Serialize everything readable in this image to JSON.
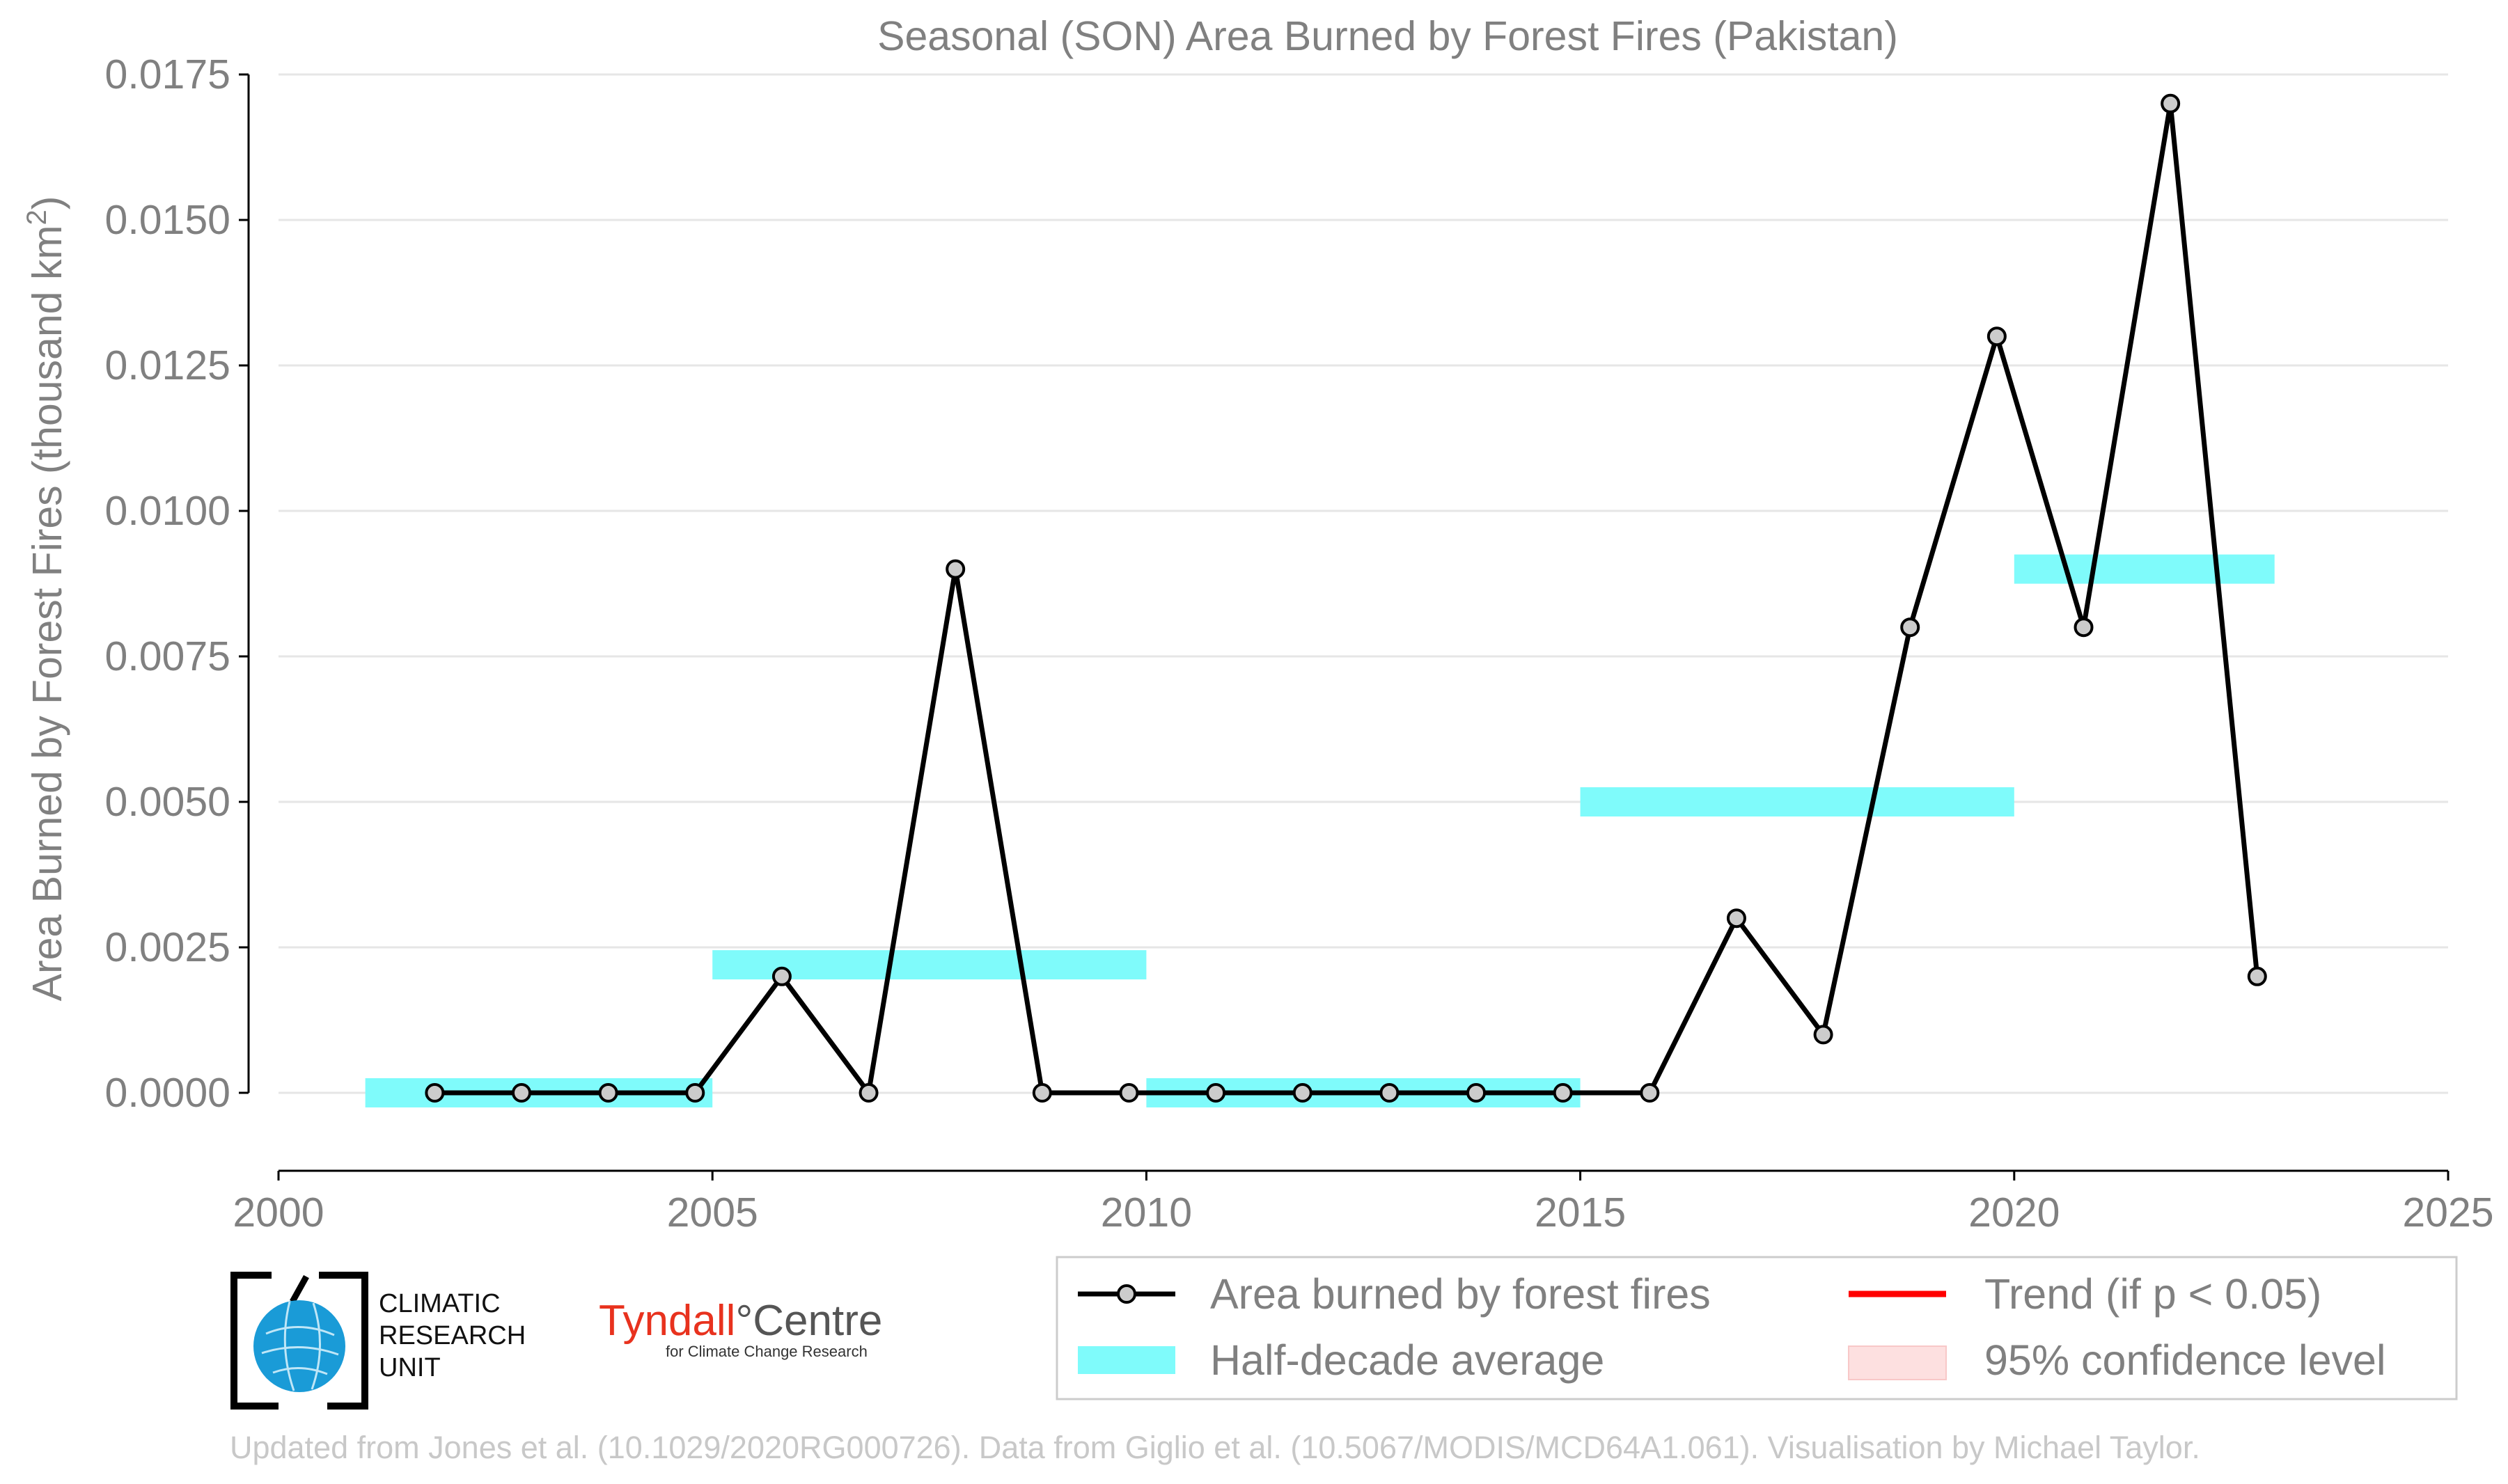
{
  "chart_data": {
    "type": "line",
    "title": "Seasonal (SON) Area Burned by Forest Fires (Pakistan)",
    "ylabel": "Area Burned by Forest Fires (thousand km",
    "ylabel_sup": "2",
    "ylabel_end": ")",
    "xlabel": "",
    "xlim": [
      2000,
      2025
    ],
    "ylim": [
      -0.00135,
      0.0175
    ],
    "xticks": [
      2000,
      2005,
      2010,
      2015,
      2020,
      2025
    ],
    "xtick_labels": [
      "2000",
      "2005",
      "2010",
      "2015",
      "2020",
      "2025"
    ],
    "yticks": [
      0.0,
      0.0025,
      0.005,
      0.0075,
      0.01,
      0.0125,
      0.015,
      0.0175
    ],
    "ytick_labels": [
      "0.0000",
      "0.0025",
      "0.0050",
      "0.0075",
      "0.0100",
      "0.0125",
      "0.0150",
      "0.0175"
    ],
    "grid": "horizontal",
    "series": [
      {
        "name": "Area burned by forest fires",
        "color": "#000000",
        "marker_fill": "#cccccc",
        "x": [
          2001.8,
          2002.8,
          2003.8,
          2004.8,
          2005.8,
          2006.8,
          2007.8,
          2008.8,
          2009.8,
          2010.8,
          2011.8,
          2012.8,
          2013.8,
          2014.8,
          2015.8,
          2016.8,
          2017.8,
          2018.8,
          2019.8,
          2020.8,
          2021.8,
          2022.8
        ],
        "y": [
          0.0,
          0.0,
          0.0,
          0.0,
          0.002,
          0.0,
          0.009,
          0.0,
          0.0,
          0.0,
          0.0,
          0.0,
          0.0,
          0.0,
          0.0,
          0.003,
          0.001,
          0.008,
          0.013,
          0.008,
          0.017,
          0.002
        ]
      }
    ],
    "half_decade_average": {
      "name": "Half-decade average",
      "color": "#7ffbfb",
      "segments": [
        {
          "x0": 2001.0,
          "x1": 2005.0,
          "y": 0.0
        },
        {
          "x0": 2005.0,
          "x1": 2010.0,
          "y": 0.0022
        },
        {
          "x0": 2010.0,
          "x1": 2015.0,
          "y": 0.0
        },
        {
          "x0": 2015.0,
          "x1": 2020.0,
          "y": 0.005
        },
        {
          "x0": 2020.0,
          "x1": 2023.0,
          "y": 0.009
        }
      ]
    },
    "legend": {
      "placement": "bottom-right",
      "entries": [
        {
          "label": "Area burned by forest fires",
          "kind": "line-marker",
          "color": "#000000"
        },
        {
          "label": "Trend (if p < 0.05)",
          "kind": "line",
          "color": "#ff0000"
        },
        {
          "label": "Half-decade average",
          "kind": "patch",
          "color": "#7ffbfb"
        },
        {
          "label": "95% confidence level",
          "kind": "patch",
          "color": "#fde0e0"
        }
      ]
    }
  },
  "logos": {
    "cru_lines": [
      "CLIMATIC",
      "RESEARCH",
      "UNIT"
    ],
    "tyndall_name_red": "Tyndall",
    "tyndall_degree": "°",
    "tyndall_name_grey": "Centre",
    "tyndall_subtitle": "for Climate Change Research"
  },
  "credit": "Updated from Jones et al. (10.1029/2020RG000726). Data from Giglio et al. (10.5067/MODIS/MCD64A1.061). Visualisation by Michael Taylor."
}
